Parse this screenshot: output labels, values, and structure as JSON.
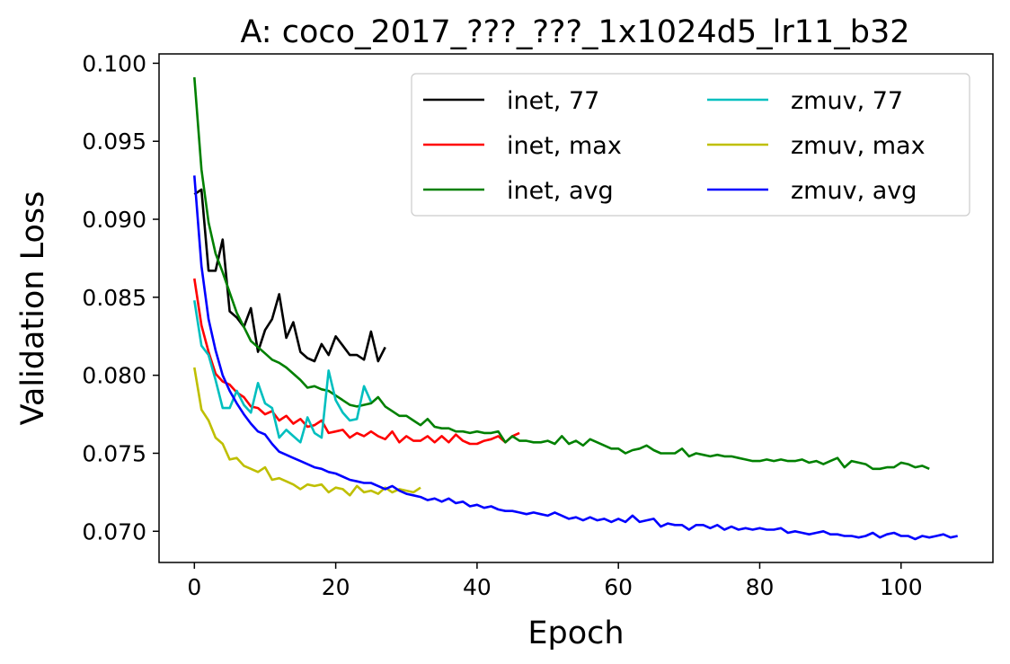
{
  "chart_data": {
    "type": "line",
    "title": "A:  coco_2017_???_???_1x1024d5_lr11_b32",
    "xlabel": "Epoch",
    "ylabel": "Validation Loss",
    "xlim": [
      -5,
      113
    ],
    "ylim": [
      0.068,
      0.1006
    ],
    "xticks": [
      0,
      20,
      40,
      60,
      80,
      100
    ],
    "xtick_labels": [
      "0",
      "20",
      "40",
      "60",
      "80",
      "100"
    ],
    "yticks": [
      0.07,
      0.075,
      0.08,
      0.085,
      0.09,
      0.095,
      0.1
    ],
    "ytick_labels": [
      "0.070",
      "0.075",
      "0.080",
      "0.085",
      "0.090",
      "0.095",
      "0.100"
    ],
    "grid": false,
    "legend_position": "top-right",
    "legend_columns": 2,
    "series": [
      {
        "name": "inet, 77",
        "color": "#000000",
        "x": [
          0,
          1,
          2,
          3,
          4,
          5,
          6,
          7,
          8,
          9,
          10,
          11,
          12,
          13,
          14,
          15,
          16,
          17,
          18,
          19,
          20,
          21,
          22,
          23,
          24,
          25,
          26,
          27
        ],
        "y": [
          0.0916,
          0.0919,
          0.0867,
          0.0867,
          0.0887,
          0.0841,
          0.0837,
          0.0831,
          0.0843,
          0.0815,
          0.0829,
          0.0836,
          0.0852,
          0.0824,
          0.0834,
          0.0815,
          0.0811,
          0.0809,
          0.082,
          0.0813,
          0.0825,
          0.0819,
          0.0813,
          0.0813,
          0.081,
          0.0828,
          0.0809,
          0.0818
        ]
      },
      {
        "name": "inet, max",
        "color": "#ff0000",
        "x": [
          0,
          1,
          2,
          3,
          4,
          5,
          6,
          7,
          8,
          9,
          10,
          11,
          12,
          13,
          14,
          15,
          16,
          17,
          18,
          19,
          20,
          21,
          22,
          23,
          24,
          25,
          26,
          27,
          28,
          29,
          30,
          31,
          32,
          33,
          34,
          35,
          36,
          37,
          38,
          39,
          40,
          41,
          42,
          43,
          44,
          45,
          46
        ],
        "y": [
          0.0862,
          0.0832,
          0.0815,
          0.0801,
          0.0796,
          0.0794,
          0.0789,
          0.0786,
          0.078,
          0.0779,
          0.0775,
          0.0777,
          0.0771,
          0.0774,
          0.0769,
          0.0772,
          0.0767,
          0.0768,
          0.0771,
          0.0763,
          0.0764,
          0.0765,
          0.076,
          0.0763,
          0.0761,
          0.0764,
          0.0761,
          0.0759,
          0.0764,
          0.0757,
          0.0761,
          0.0758,
          0.0758,
          0.0761,
          0.0757,
          0.0761,
          0.0757,
          0.0762,
          0.0758,
          0.0756,
          0.0756,
          0.0758,
          0.0759,
          0.0761,
          0.0757,
          0.0761,
          0.0763
        ]
      },
      {
        "name": "inet, avg",
        "color": "#008000",
        "x": [
          0,
          1,
          2,
          3,
          4,
          5,
          6,
          7,
          8,
          9,
          10,
          11,
          12,
          13,
          14,
          15,
          16,
          17,
          18,
          19,
          20,
          21,
          22,
          23,
          24,
          25,
          26,
          27,
          28,
          29,
          30,
          31,
          32,
          33,
          34,
          35,
          36,
          37,
          38,
          39,
          40,
          41,
          42,
          43,
          44,
          45,
          46,
          47,
          48,
          49,
          50,
          51,
          52,
          53,
          54,
          55,
          56,
          57,
          58,
          59,
          60,
          61,
          62,
          63,
          64,
          65,
          66,
          67,
          68,
          69,
          70,
          71,
          72,
          73,
          74,
          75,
          76,
          77,
          78,
          79,
          80,
          81,
          82,
          83,
          84,
          85,
          86,
          87,
          88,
          89,
          90,
          91,
          92,
          93,
          94,
          95,
          96,
          97,
          98,
          99,
          100,
          101,
          102,
          103,
          104
        ],
        "y": [
          0.0991,
          0.0932,
          0.0898,
          0.0878,
          0.0866,
          0.0853,
          0.084,
          0.0831,
          0.0822,
          0.0818,
          0.0814,
          0.081,
          0.0808,
          0.0805,
          0.0801,
          0.0797,
          0.0792,
          0.0793,
          0.0791,
          0.079,
          0.0787,
          0.0784,
          0.0781,
          0.078,
          0.0781,
          0.0782,
          0.0786,
          0.078,
          0.0777,
          0.0774,
          0.0774,
          0.0771,
          0.0768,
          0.0772,
          0.0767,
          0.0766,
          0.0766,
          0.0764,
          0.0764,
          0.0763,
          0.0764,
          0.0763,
          0.0763,
          0.0764,
          0.0757,
          0.0761,
          0.0758,
          0.0758,
          0.0757,
          0.0757,
          0.0758,
          0.0756,
          0.0761,
          0.0756,
          0.0758,
          0.0755,
          0.0759,
          0.0757,
          0.0755,
          0.0753,
          0.0753,
          0.075,
          0.0752,
          0.0753,
          0.0755,
          0.0752,
          0.075,
          0.075,
          0.075,
          0.0753,
          0.0748,
          0.075,
          0.0749,
          0.0748,
          0.0749,
          0.0748,
          0.0748,
          0.0747,
          0.0746,
          0.0745,
          0.0745,
          0.0746,
          0.0745,
          0.0746,
          0.0745,
          0.0745,
          0.0746,
          0.0744,
          0.0745,
          0.0743,
          0.0745,
          0.0747,
          0.0741,
          0.0745,
          0.0744,
          0.0743,
          0.074,
          0.074,
          0.0741,
          0.0741,
          0.0744,
          0.0743,
          0.0741,
          0.0742,
          0.074
        ]
      },
      {
        "name": "zmuv, 77",
        "color": "#00bfbf",
        "x": [
          0,
          1,
          2,
          3,
          4,
          5,
          6,
          7,
          8,
          9,
          10,
          11,
          12,
          13,
          14,
          15,
          16,
          17,
          18,
          19,
          20,
          21,
          22,
          23,
          24,
          25
        ],
        "y": [
          0.0848,
          0.0819,
          0.0813,
          0.0797,
          0.0779,
          0.0779,
          0.079,
          0.0781,
          0.0776,
          0.0795,
          0.0782,
          0.0779,
          0.076,
          0.0765,
          0.0761,
          0.0757,
          0.0773,
          0.0763,
          0.076,
          0.0803,
          0.0784,
          0.0776,
          0.0771,
          0.0772,
          0.0793,
          0.0783
        ]
      },
      {
        "name": "zmuv, max",
        "color": "#bfbf00",
        "x": [
          0,
          1,
          2,
          3,
          4,
          5,
          6,
          7,
          8,
          9,
          10,
          11,
          12,
          13,
          14,
          15,
          16,
          17,
          18,
          19,
          20,
          21,
          22,
          23,
          24,
          25,
          26,
          27,
          28,
          29,
          30,
          31,
          32
        ],
        "y": [
          0.0805,
          0.0778,
          0.0771,
          0.076,
          0.0756,
          0.0746,
          0.0747,
          0.0742,
          0.074,
          0.0738,
          0.0741,
          0.0733,
          0.0734,
          0.0732,
          0.073,
          0.0727,
          0.073,
          0.0729,
          0.073,
          0.0725,
          0.0728,
          0.0727,
          0.0723,
          0.0729,
          0.0725,
          0.0726,
          0.0724,
          0.0728,
          0.0725,
          0.0727,
          0.0726,
          0.0725,
          0.0728
        ]
      },
      {
        "name": "zmuv, avg",
        "color": "#0000ff",
        "x": [
          0,
          1,
          2,
          3,
          4,
          5,
          6,
          7,
          8,
          9,
          10,
          11,
          12,
          13,
          14,
          15,
          16,
          17,
          18,
          19,
          20,
          21,
          22,
          23,
          24,
          25,
          26,
          27,
          28,
          29,
          30,
          31,
          32,
          33,
          34,
          35,
          36,
          37,
          38,
          39,
          40,
          41,
          42,
          43,
          44,
          45,
          46,
          47,
          48,
          49,
          50,
          51,
          52,
          53,
          54,
          55,
          56,
          57,
          58,
          59,
          60,
          61,
          62,
          63,
          64,
          65,
          66,
          67,
          68,
          69,
          70,
          71,
          72,
          73,
          74,
          75,
          76,
          77,
          78,
          79,
          80,
          81,
          82,
          83,
          84,
          85,
          86,
          87,
          88,
          89,
          90,
          91,
          92,
          93,
          94,
          95,
          96,
          97,
          98,
          99,
          100,
          101,
          102,
          103,
          104,
          105,
          106,
          107,
          108
        ],
        "y": [
          0.0928,
          0.087,
          0.0836,
          0.0816,
          0.08,
          0.079,
          0.0782,
          0.0775,
          0.0769,
          0.0764,
          0.0762,
          0.0756,
          0.0751,
          0.0749,
          0.0747,
          0.0745,
          0.0743,
          0.0741,
          0.074,
          0.0738,
          0.0737,
          0.0735,
          0.0733,
          0.0732,
          0.0731,
          0.0731,
          0.0729,
          0.0727,
          0.0729,
          0.0726,
          0.0724,
          0.0723,
          0.0722,
          0.072,
          0.0721,
          0.0719,
          0.0721,
          0.0718,
          0.0719,
          0.0716,
          0.0717,
          0.0715,
          0.0716,
          0.0714,
          0.0713,
          0.0713,
          0.0712,
          0.0711,
          0.0712,
          0.0711,
          0.071,
          0.0712,
          0.071,
          0.0708,
          0.0709,
          0.0707,
          0.0709,
          0.0707,
          0.0708,
          0.0706,
          0.0708,
          0.0706,
          0.071,
          0.0706,
          0.0707,
          0.0708,
          0.0703,
          0.0705,
          0.0704,
          0.0704,
          0.0701,
          0.0704,
          0.0704,
          0.0702,
          0.0704,
          0.0701,
          0.0703,
          0.0701,
          0.0702,
          0.0701,
          0.0702,
          0.0701,
          0.0701,
          0.0702,
          0.0699,
          0.07,
          0.0699,
          0.0698,
          0.0699,
          0.07,
          0.0698,
          0.0698,
          0.0697,
          0.0697,
          0.0696,
          0.0697,
          0.0699,
          0.0696,
          0.0698,
          0.0699,
          0.0697,
          0.0697,
          0.0695,
          0.0697,
          0.0696,
          0.0697,
          0.0698,
          0.0696,
          0.0697
        ]
      }
    ]
  }
}
